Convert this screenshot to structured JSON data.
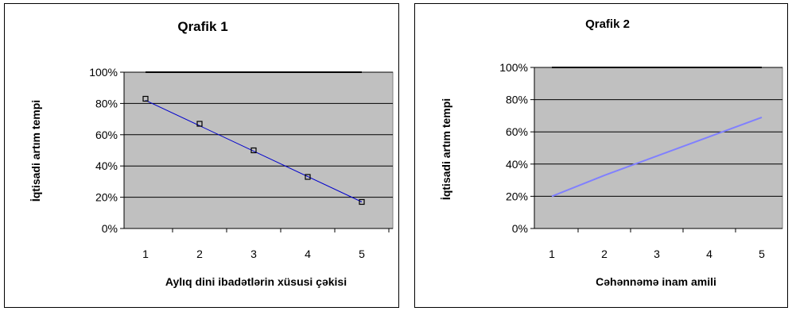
{
  "chart_data": [
    {
      "type": "line",
      "title": "Qrafik 1",
      "xlabel": "Aylıq dini ibadətlərin xüsusi çəkisi",
      "ylabel": "İqtisadi artım tempi",
      "x": [
        1,
        2,
        3,
        4,
        5
      ],
      "y_tick_labels": [
        "0%",
        "20%",
        "40%",
        "60%",
        "80%",
        "100%"
      ],
      "x_tick_labels": [
        "1",
        "2",
        "3",
        "4",
        "5"
      ],
      "ylim": [
        0,
        1
      ],
      "markers": "square",
      "grid": true,
      "series": [
        {
          "values": [
            0.83,
            0.67,
            0.5,
            0.33,
            0.17
          ]
        }
      ],
      "trendline": {
        "values": [
          0.82,
          0.66,
          0.5,
          0.34,
          0.17
        ]
      },
      "reference_line": 1.0,
      "colors": {
        "plot_bg": "#c0c0c0",
        "line": "#0000cc",
        "marker": "#000000",
        "reference": "#000000"
      }
    },
    {
      "type": "line",
      "title": "Qrafik 2",
      "xlabel": "Cəhənnəmə inam amili",
      "ylabel": "İqtisadi artım tempi",
      "x": [
        1,
        2,
        3,
        4,
        5
      ],
      "y_tick_labels": [
        "0%",
        "20%",
        "40%",
        "60%",
        "80%",
        "100%"
      ],
      "x_tick_labels": [
        "1",
        "2",
        "3",
        "4",
        "5"
      ],
      "ylim": [
        0,
        1
      ],
      "markers": "none",
      "grid": true,
      "series": [
        {
          "values": [
            0.2,
            0.33,
            0.45,
            0.57,
            0.69
          ]
        }
      ],
      "reference_line": 1.0,
      "colors": {
        "plot_bg": "#c0c0c0",
        "line": "#8080ff",
        "reference": "#000000"
      }
    }
  ]
}
